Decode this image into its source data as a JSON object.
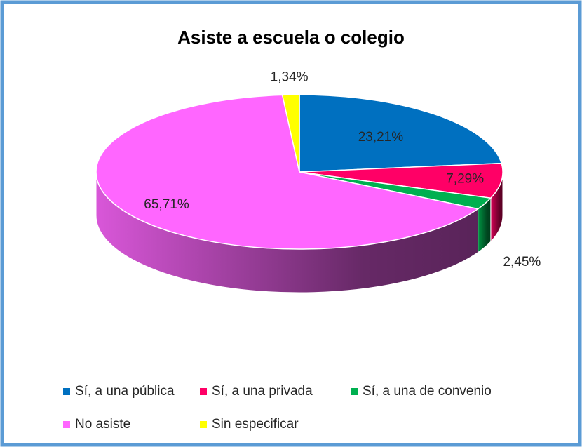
{
  "chart_data": {
    "type": "pie",
    "title": "Asiste a escuela o colegio",
    "categories": [
      "Sí, a una pública",
      "Sí, a una privada",
      "Sí, a una de convenio",
      "No asiste",
      "Sin especificar"
    ],
    "values": [
      23.21,
      7.29,
      2.45,
      65.71,
      1.34
    ],
    "value_labels": [
      "23,21%",
      "7,29%",
      "2,45%",
      "65,71%",
      "1,34%"
    ],
    "colors": [
      "#0070c0",
      "#ff0066",
      "#00b050",
      "#ff66ff",
      "#ffff00"
    ],
    "legend": "bottom"
  }
}
